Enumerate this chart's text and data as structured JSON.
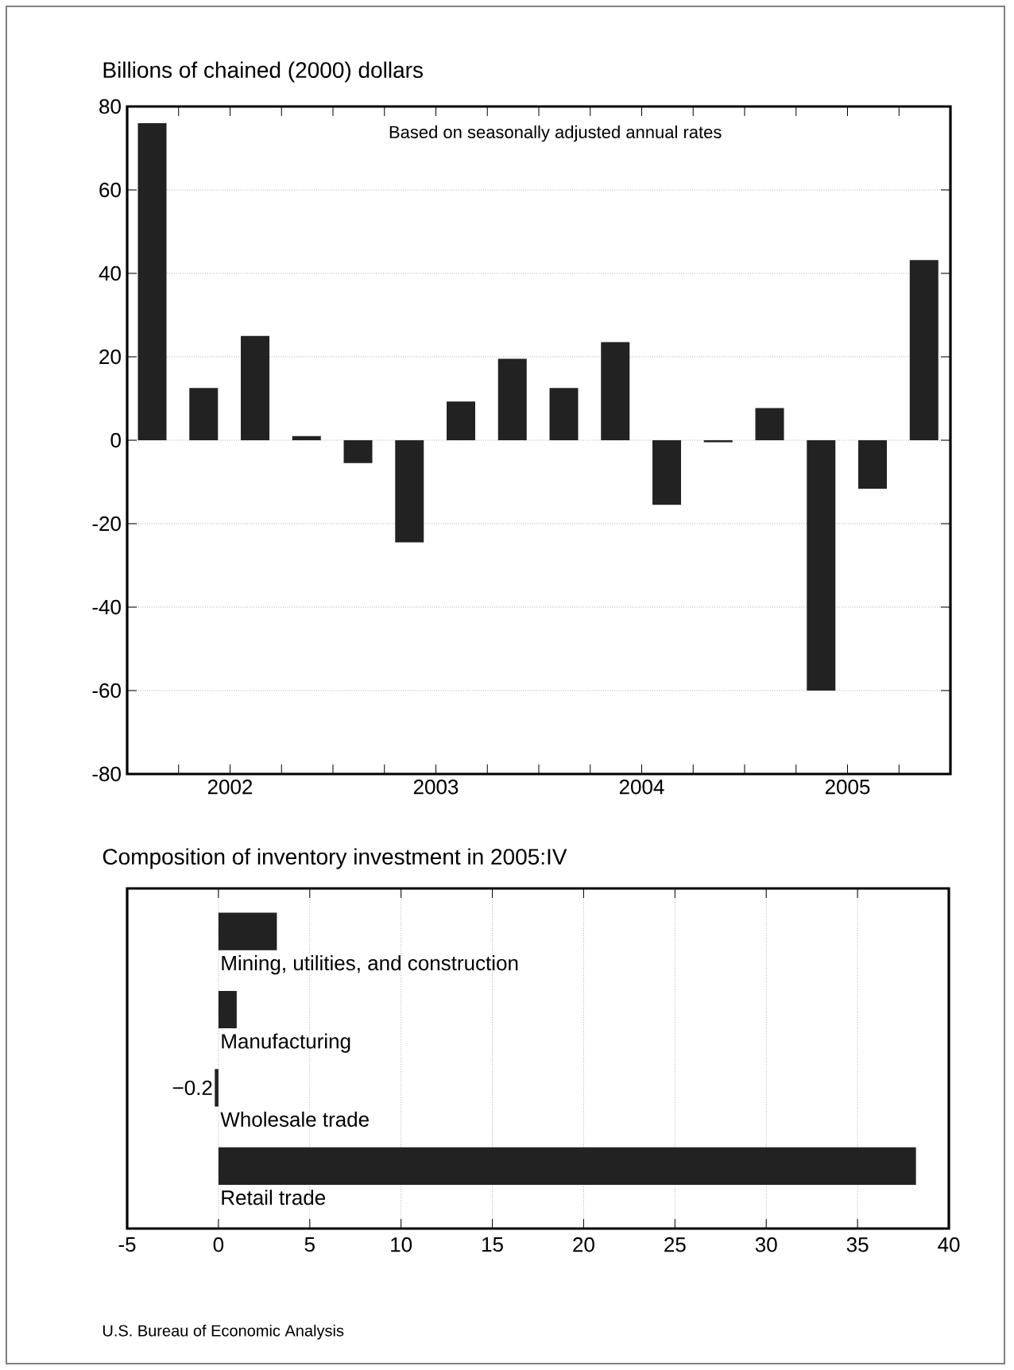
{
  "chart_data": [
    {
      "type": "bar",
      "ylabel": "Billions of chained (2000) dollars",
      "annotations": [
        "Based on seasonally adjusted annual rates"
      ],
      "x": [
        "2002-02-15",
        "2002-05-15",
        "2002-08-15",
        "2002-11-15",
        "2003-02-15",
        "2003-05-15",
        "2003-08-15",
        "2003-11-15",
        "2004-02-15",
        "2004-05-15",
        "2004-08-15",
        "2004-11-15",
        "2005-02-15",
        "2005-05-15",
        "2005-08-15",
        "2005-11-15"
      ],
      "values": [
        76,
        12.5,
        25,
        1,
        -5.5,
        -24.5,
        9.3,
        19.5,
        12.5,
        23.5,
        -15.5,
        -0.5,
        7.7,
        -60,
        -11.6,
        43.2
      ],
      "color": "#222222",
      "xlim": [
        "2002-01-01",
        "2006-01-01"
      ],
      "xticks": [
        {
          "value": "2002-04-01",
          "label": null
        },
        {
          "value": "2002-07-01",
          "label": "2002"
        },
        {
          "value": "2002-10-01",
          "label": null
        },
        {
          "value": "2003-01-01",
          "label": null
        },
        {
          "value": "2003-04-01",
          "label": null
        },
        {
          "value": "2003-07-01",
          "label": "2003"
        },
        {
          "value": "2003-10-01",
          "label": null
        },
        {
          "value": "2004-01-01",
          "label": null
        },
        {
          "value": "2004-04-01",
          "label": null
        },
        {
          "value": "2004-07-01",
          "label": "2004"
        },
        {
          "value": "2004-10-01",
          "label": null
        },
        {
          "value": "2005-01-01",
          "label": null
        },
        {
          "value": "2005-04-01",
          "label": null
        },
        {
          "value": "2005-07-01",
          "label": "2005"
        },
        {
          "value": "2005-10-01",
          "label": null
        }
      ],
      "ylim": [
        -80,
        80
      ],
      "yticks": [
        -80,
        -60,
        -40,
        -20,
        0,
        20,
        40,
        60,
        80
      ],
      "grid": "y"
    },
    {
      "type": "bar",
      "orientation": "horizontal",
      "title": "Composition of inventory investment in 2005:IV",
      "annotations": [
        "U.S. Bureau of Economic Analysis"
      ],
      "categories": [
        "Mining, utilities, and construction",
        "Manufacturing",
        "Wholesale trade",
        "Retail trade"
      ],
      "values": [
        3.2,
        1.0,
        -0.2,
        38.2
      ],
      "value_labels": [
        null,
        null,
        "−0.2",
        null
      ],
      "color": "#222222",
      "xlim": [
        -5,
        40
      ],
      "xticks": [
        -5,
        0,
        5,
        10,
        15,
        20,
        25,
        30,
        35,
        40
      ],
      "grid": "x"
    }
  ]
}
